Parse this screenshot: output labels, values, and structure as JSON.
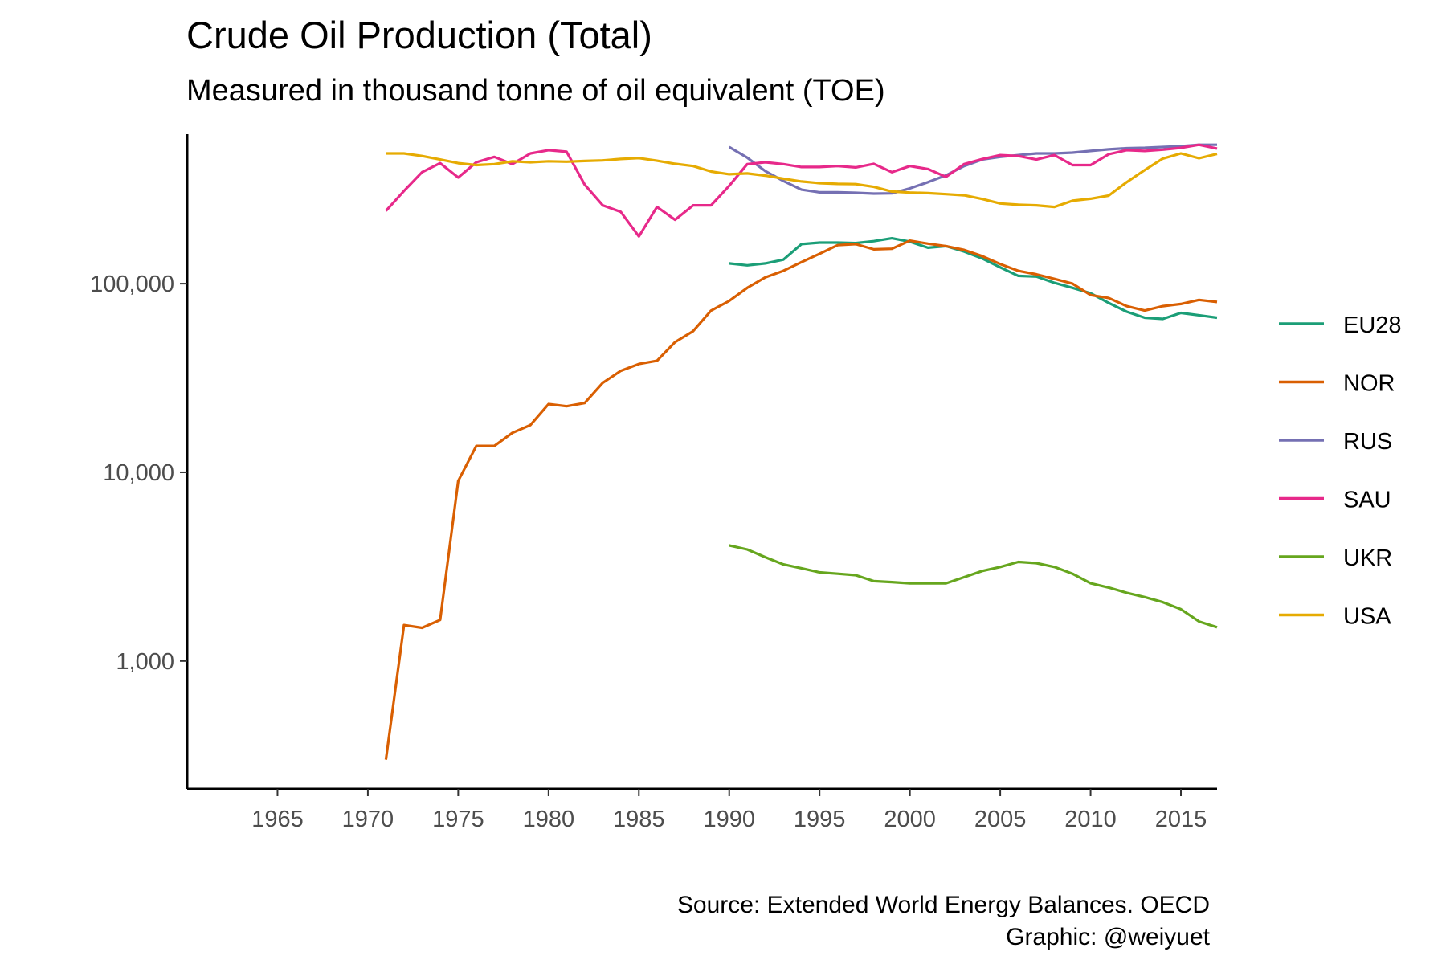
{
  "chart_data": {
    "type": "line",
    "title": "Crude Oil Production (Total)",
    "subtitle": "Measured in thousand tonne of oil equivalent (TOE)",
    "xlabel": "",
    "ylabel": "",
    "x_ticks": [
      1965,
      1970,
      1975,
      1980,
      1985,
      1990,
      1995,
      2000,
      2005,
      2010,
      2015
    ],
    "y_scale": "log10",
    "y_ticks": [
      1000,
      10000,
      100000
    ],
    "y_tick_labels": [
      "1,000",
      "10,000",
      "100,000"
    ],
    "xlim": [
      1960,
      2017
    ],
    "ylim": [
      210,
      620000
    ],
    "grid": false,
    "legend_position": "right",
    "series": [
      {
        "name": "EU28",
        "color": "#1b9e77",
        "x": [
          1990,
          1991,
          1992,
          1993,
          1994,
          1995,
          1996,
          1997,
          1998,
          1999,
          2000,
          2001,
          2002,
          2003,
          2004,
          2005,
          2006,
          2007,
          2008,
          2009,
          2010,
          2011,
          2012,
          2013,
          2014,
          2015,
          2016,
          2017
        ],
        "y": [
          128000,
          125000,
          128000,
          134000,
          162000,
          165000,
          165000,
          164000,
          168000,
          174000,
          167000,
          155000,
          158000,
          148000,
          136000,
          122000,
          110000,
          109000,
          101000,
          95000,
          89000,
          79000,
          71000,
          66000,
          65000,
          70000,
          68000,
          66000
        ]
      },
      {
        "name": "NOR",
        "color": "#d95f02",
        "x": [
          1971,
          1972,
          1973,
          1974,
          1975,
          1976,
          1977,
          1978,
          1979,
          1980,
          1981,
          1982,
          1983,
          1984,
          1985,
          1986,
          1987,
          1988,
          1989,
          1990,
          1991,
          1992,
          1993,
          1994,
          1995,
          1996,
          1997,
          1998,
          1999,
          2000,
          2001,
          2002,
          2003,
          2004,
          2005,
          2006,
          2007,
          2008,
          2009,
          2010,
          2011,
          2012,
          2013,
          2014,
          2015,
          2016,
          2017
        ],
        "y": [
          300,
          1550,
          1500,
          1650,
          9000,
          13800,
          13800,
          16200,
          17800,
          23000,
          22400,
          23300,
          29800,
          34500,
          37500,
          39000,
          49000,
          56000,
          72000,
          81000,
          95000,
          108000,
          117000,
          130000,
          144000,
          160000,
          162000,
          152000,
          153000,
          169000,
          163000,
          158000,
          151000,
          140000,
          127000,
          117000,
          112000,
          106000,
          100000,
          87000,
          84000,
          76000,
          72000,
          76000,
          78000,
          82000,
          80000
        ]
      },
      {
        "name": "RUS",
        "color": "#7570b3",
        "x": [
          1990,
          1991,
          1992,
          1993,
          1994,
          1995,
          1996,
          1997,
          1998,
          1999,
          2000,
          2001,
          2002,
          2003,
          2004,
          2005,
          2006,
          2007,
          2008,
          2009,
          2010,
          2011,
          2012,
          2013,
          2014,
          2015,
          2016,
          2017
        ],
        "y": [
          530000,
          465000,
          395000,
          350000,
          315000,
          305000,
          305000,
          303000,
          300000,
          301000,
          320000,
          345000,
          375000,
          420000,
          455000,
          470000,
          480000,
          490000,
          490000,
          495000,
          505000,
          515000,
          522000,
          525000,
          530000,
          535000,
          545000,
          545000
        ]
      },
      {
        "name": "SAU",
        "color": "#e7298a",
        "x": [
          1971,
          1972,
          1973,
          1974,
          1975,
          1976,
          1977,
          1978,
          1979,
          1980,
          1981,
          1982,
          1983,
          1984,
          1985,
          1986,
          1987,
          1988,
          1989,
          1990,
          1991,
          1992,
          1993,
          1994,
          1995,
          1996,
          1997,
          1998,
          1999,
          2000,
          2001,
          2002,
          2003,
          2004,
          2005,
          2006,
          2007,
          2008,
          2009,
          2010,
          2011,
          2012,
          2013,
          2014,
          2015,
          2016,
          2017
        ],
        "y": [
          243000,
          310000,
          390000,
          435000,
          365000,
          440000,
          470000,
          430000,
          490000,
          510000,
          500000,
          335000,
          260000,
          240000,
          178000,
          255000,
          218000,
          260000,
          260000,
          330000,
          430000,
          440000,
          430000,
          415000,
          415000,
          420000,
          413000,
          432000,
          390000,
          420000,
          405000,
          368000,
          430000,
          457000,
          480000,
          475000,
          455000,
          480000,
          425000,
          425000,
          485000,
          510000,
          505000,
          513000,
          525000,
          545000,
          520000
        ]
      },
      {
        "name": "UKR",
        "color": "#66a61e",
        "x": [
          1990,
          1991,
          1992,
          1993,
          1994,
          1995,
          1996,
          1997,
          1998,
          1999,
          2000,
          2001,
          2002,
          2003,
          2004,
          2005,
          2006,
          2007,
          2008,
          2009,
          2010,
          2011,
          2012,
          2013,
          2014,
          2015,
          2016,
          2017
        ],
        "y": [
          4100,
          3900,
          3550,
          3250,
          3100,
          2950,
          2900,
          2850,
          2650,
          2620,
          2580,
          2580,
          2580,
          2780,
          3000,
          3150,
          3350,
          3300,
          3150,
          2900,
          2580,
          2450,
          2300,
          2180,
          2050,
          1880,
          1620,
          1510
        ]
      },
      {
        "name": "USA",
        "color": "#e6ab02",
        "x": [
          1971,
          1972,
          1973,
          1974,
          1975,
          1976,
          1977,
          1978,
          1979,
          1980,
          1981,
          1982,
          1983,
          1984,
          1985,
          1986,
          1987,
          1988,
          1989,
          1990,
          1991,
          1992,
          1993,
          1994,
          1995,
          1996,
          1997,
          1998,
          1999,
          2000,
          2001,
          2002,
          2003,
          2004,
          2005,
          2006,
          2007,
          2008,
          2009,
          2010,
          2011,
          2012,
          2013,
          2014,
          2015,
          2016,
          2017
        ],
        "y": [
          490000,
          490000,
          475000,
          455000,
          435000,
          425000,
          430000,
          445000,
          440000,
          445000,
          443000,
          447000,
          450000,
          458000,
          463000,
          448000,
          432000,
          420000,
          393000,
          380000,
          384000,
          374000,
          360000,
          348000,
          341000,
          338000,
          337000,
          326000,
          308000,
          304000,
          302000,
          298000,
          294000,
          281000,
          266000,
          262000,
          260000,
          255000,
          275000,
          282000,
          293000,
          345000,
          400000,
          460000,
          490000,
          462000,
          487000
        ]
      }
    ]
  },
  "caption": {
    "line1": "Source: Extended World Energy Balances. OECD",
    "line2": "Graphic: @weiyuet"
  }
}
